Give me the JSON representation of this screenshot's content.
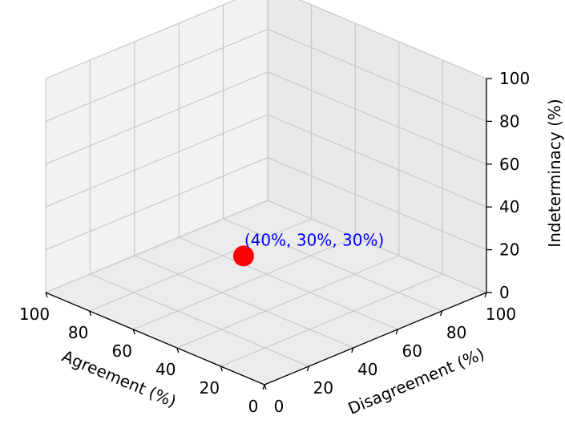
{
  "chart_data": {
    "type": "scatter",
    "projection": "3d",
    "xlabel": "Agreement (%)",
    "ylabel": "Disagreement (%)",
    "zlabel": "Indeterminacy (%)",
    "xlim": [
      0,
      100
    ],
    "ylim": [
      0,
      100
    ],
    "zlim": [
      0,
      100
    ],
    "xticks": [
      0,
      20,
      40,
      60,
      80,
      100
    ],
    "yticks": [
      0,
      20,
      40,
      60,
      80,
      100
    ],
    "zticks": [
      0,
      20,
      40,
      60,
      80,
      100
    ],
    "grid": true,
    "points": [
      {
        "x": 40,
        "y": 30,
        "z": 30,
        "color": "#ff0000",
        "label": "(40%, 30%, 30%)",
        "label_color": "#0000ff"
      }
    ]
  },
  "colors": {
    "pane_floor": "#ececec",
    "pane_back_right": "#e9e9e9",
    "pane_back_left": "#f2f2f2",
    "grid": "#c8c8c8",
    "axis": "#000000",
    "text": "#000000"
  }
}
